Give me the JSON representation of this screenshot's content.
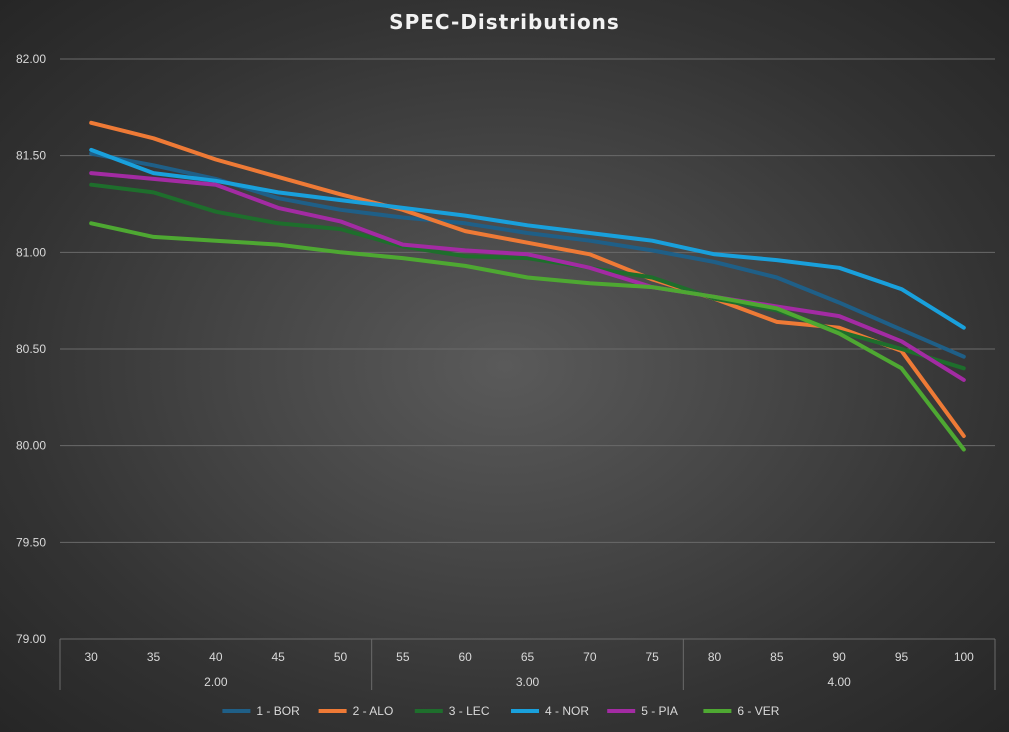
{
  "chart_data": {
    "type": "line",
    "title": "SPEC-Distributions",
    "xlabel": "",
    "ylabel": "",
    "categories": [
      "30",
      "35",
      "40",
      "45",
      "50",
      "55",
      "60",
      "65",
      "70",
      "75",
      "80",
      "85",
      "90",
      "95",
      "100"
    ],
    "groups": [
      {
        "label": "2.00",
        "categories": [
          "30",
          "35",
          "40",
          "45",
          "50"
        ]
      },
      {
        "label": "3.00",
        "categories": [
          "55",
          "60",
          "65",
          "70",
          "75"
        ]
      },
      {
        "label": "4.00",
        "categories": [
          "80",
          "85",
          "90",
          "95",
          "100"
        ]
      }
    ],
    "ylim": [
      79.0,
      82.0
    ],
    "yticks": [
      79.0,
      79.5,
      80.0,
      80.5,
      81.0,
      81.5,
      82.0
    ],
    "ytick_labels": [
      "79.00",
      "79.50",
      "80.00",
      "80.50",
      "81.00",
      "81.50",
      "82.00"
    ],
    "grid": true,
    "legend_position": "bottom",
    "series": [
      {
        "name": "1 - BOR",
        "color": "#1f5f87",
        "values": [
          81.51,
          81.45,
          81.38,
          81.28,
          81.22,
          81.18,
          81.15,
          81.1,
          81.06,
          81.01,
          80.95,
          80.87,
          80.74,
          80.6,
          80.46
        ]
      },
      {
        "name": "2 - ALO",
        "color": "#ee7a36",
        "values": [
          81.67,
          81.59,
          81.48,
          81.39,
          81.3,
          81.22,
          81.11,
          81.05,
          80.99,
          80.86,
          80.76,
          80.64,
          80.61,
          80.49,
          80.05
        ]
      },
      {
        "name": "3 - LEC",
        "color": "#1e6e2c",
        "values": [
          81.35,
          81.31,
          81.21,
          81.15,
          81.12,
          81.03,
          80.98,
          80.97,
          80.92,
          80.87,
          80.76,
          80.7,
          80.59,
          80.5,
          80.4
        ]
      },
      {
        "name": "4 - NOR",
        "color": "#19a0dc",
        "values": [
          81.53,
          81.41,
          81.37,
          81.31,
          81.27,
          81.23,
          81.19,
          81.14,
          81.1,
          81.06,
          80.99,
          80.96,
          80.92,
          80.81,
          80.61
        ]
      },
      {
        "name": "5 - PIA",
        "color": "#a32ba3",
        "values": [
          81.41,
          81.38,
          81.35,
          81.23,
          81.16,
          81.04,
          81.01,
          80.99,
          80.92,
          80.82,
          80.77,
          80.72,
          80.67,
          80.54,
          80.34
        ]
      },
      {
        "name": "6 - VER",
        "color": "#4ea832",
        "values": [
          81.15,
          81.08,
          81.06,
          81.04,
          81.0,
          80.97,
          80.93,
          80.87,
          80.84,
          80.82,
          80.77,
          80.71,
          80.58,
          80.4,
          79.98
        ]
      }
    ]
  }
}
